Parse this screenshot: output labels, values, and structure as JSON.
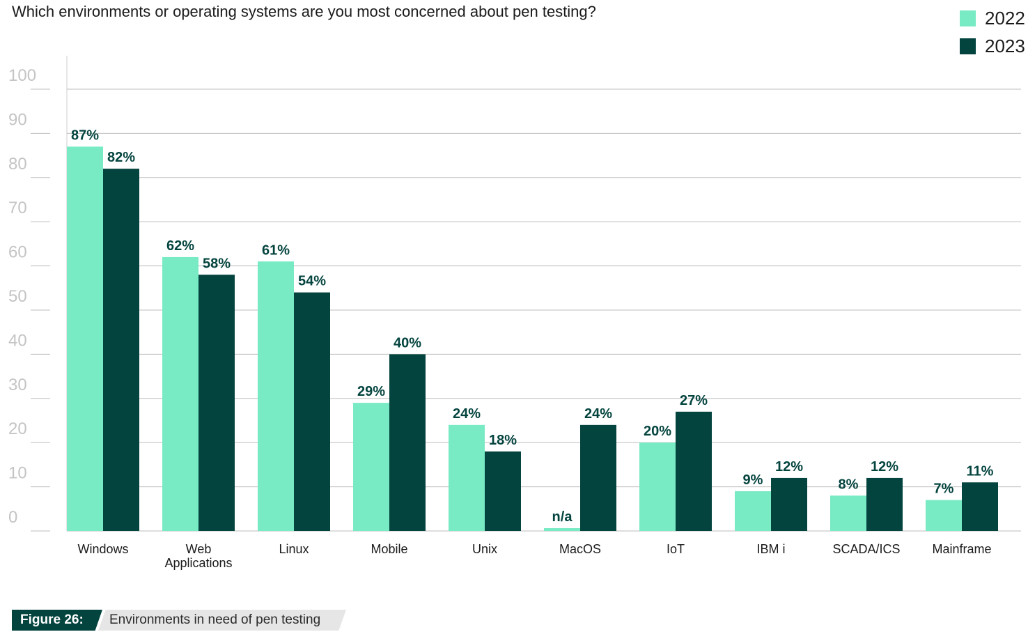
{
  "chart_data": {
    "type": "bar",
    "title": "Which environments or operating systems are you most concerned about pen testing?",
    "categories": [
      "Windows",
      "Web Applications",
      "Linux",
      "Mobile",
      "Unix",
      "MacOS",
      "IoT",
      "IBM i",
      "SCADA/ICS",
      "Mainframe"
    ],
    "series": [
      {
        "name": "2022",
        "color": "#78eac4",
        "values": [
          87,
          62,
          61,
          29,
          24,
          null,
          20,
          9,
          8,
          7
        ],
        "labels": [
          "87%",
          "62%",
          "61%",
          "29%",
          "24%",
          "n/a",
          "20%",
          "9%",
          "8%",
          "7%"
        ]
      },
      {
        "name": "2023",
        "color": "#04443f",
        "values": [
          82,
          58,
          54,
          40,
          18,
          24,
          27,
          12,
          12,
          11
        ],
        "labels": [
          "82%",
          "58%",
          "54%",
          "40%",
          "18%",
          "24%",
          "27%",
          "12%",
          "12%",
          "11%"
        ]
      }
    ],
    "ylim": [
      0,
      100
    ],
    "yticks": [
      "0",
      "10",
      "20",
      "30",
      "40",
      "50",
      "60",
      "70",
      "80",
      "90",
      "100"
    ],
    "grid": true,
    "legend": "top-right"
  },
  "figure": {
    "number": "Figure 26:",
    "caption": "Environments in need of pen testing"
  }
}
